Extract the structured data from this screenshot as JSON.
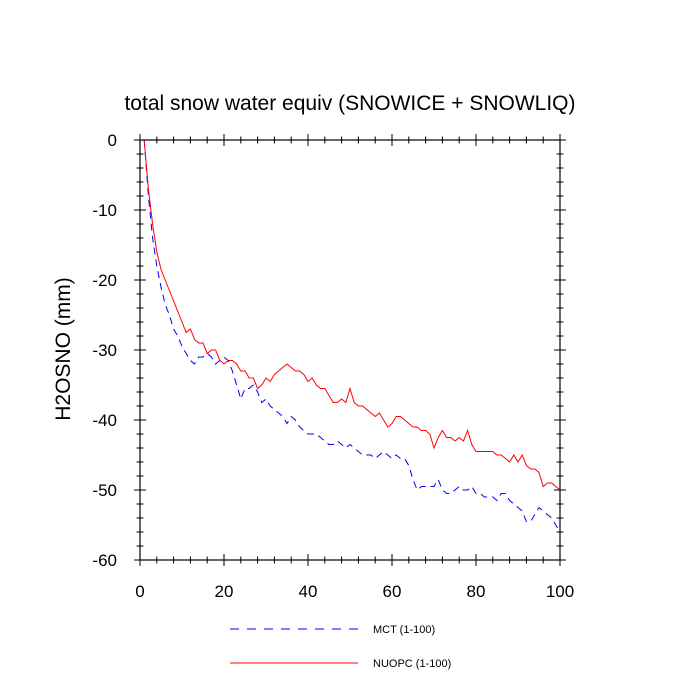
{
  "chart_data": {
    "type": "line",
    "title": "total snow water equiv (SNOWICE + SNOWLIQ)",
    "xlabel": "",
    "ylabel": "H2OSNO  (mm)",
    "xlim": [
      0,
      100
    ],
    "ylim": [
      -60,
      0
    ],
    "xticks": [
      0,
      20,
      40,
      60,
      80,
      100
    ],
    "yticks": [
      0,
      -10,
      -20,
      -30,
      -40,
      -50,
      -60
    ],
    "grid": false,
    "legend_position": "bottom",
    "series": [
      {
        "name": "MCT (1-100)",
        "color": "#0000ff",
        "style": "dashed",
        "x": [
          1,
          2,
          3,
          4,
          5,
          6,
          7,
          8,
          9,
          10,
          11,
          12,
          13,
          14,
          15,
          16,
          17,
          18,
          19,
          20,
          21,
          22,
          23,
          24,
          25,
          26,
          27,
          28,
          29,
          30,
          31,
          32,
          33,
          34,
          35,
          36,
          37,
          38,
          39,
          40,
          41,
          42,
          43,
          44,
          45,
          46,
          47,
          48,
          49,
          50,
          51,
          52,
          53,
          54,
          55,
          56,
          57,
          58,
          59,
          60,
          61,
          62,
          63,
          64,
          65,
          66,
          67,
          68,
          69,
          70,
          71,
          72,
          73,
          74,
          75,
          76,
          77,
          78,
          79,
          80,
          81,
          82,
          83,
          84,
          85,
          86,
          87,
          88,
          89,
          90,
          91,
          92,
          93,
          94,
          95,
          96,
          97,
          98,
          99,
          100
        ],
        "values": [
          0,
          -8,
          -14,
          -18,
          -21,
          -23.5,
          -25,
          -27,
          -28,
          -29.5,
          -30.5,
          -31.5,
          -32,
          -31,
          -31,
          -30.5,
          -31,
          -32,
          -31.5,
          -31,
          -31.5,
          -33,
          -35,
          -37,
          -35.5,
          -35.5,
          -35,
          -36,
          -37.5,
          -37,
          -38,
          -38.5,
          -39,
          -39.5,
          -40.5,
          -39.5,
          -40,
          -41,
          -41.5,
          -42,
          -42,
          -42,
          -42.5,
          -43,
          -43.5,
          -43.5,
          -43,
          -43.5,
          -44,
          -43.5,
          -44,
          -44.5,
          -45,
          -45,
          -45,
          -45.5,
          -45,
          -44.5,
          -45,
          -45.5,
          -45,
          -45.5,
          -45.5,
          -46.5,
          -48.5,
          -50,
          -49.5,
          -49.5,
          -49.5,
          -49.5,
          -48.5,
          -50,
          -50.5,
          -50.5,
          -50,
          -49.5,
          -50,
          -50,
          -49.5,
          -50.5,
          -50.5,
          -51,
          -51,
          -51,
          -51.5,
          -50.5,
          -50.5,
          -51.5,
          -52,
          -52.5,
          -53,
          -54.5,
          -54.5,
          -53.5,
          -52.5,
          -53,
          -53.5,
          -54,
          -55,
          -56
        ]
      },
      {
        "name": "NUOPC (1-100)",
        "color": "#ff0000",
        "style": "solid",
        "x": [
          1,
          2,
          3,
          4,
          5,
          6,
          7,
          8,
          9,
          10,
          11,
          12,
          13,
          14,
          15,
          16,
          17,
          18,
          19,
          20,
          21,
          22,
          23,
          24,
          25,
          26,
          27,
          28,
          29,
          30,
          31,
          32,
          33,
          34,
          35,
          36,
          37,
          38,
          39,
          40,
          41,
          42,
          43,
          44,
          45,
          46,
          47,
          48,
          49,
          50,
          51,
          52,
          53,
          54,
          55,
          56,
          57,
          58,
          59,
          60,
          61,
          62,
          63,
          64,
          65,
          66,
          67,
          68,
          69,
          70,
          71,
          72,
          73,
          74,
          75,
          76,
          77,
          78,
          79,
          80,
          81,
          82,
          83,
          84,
          85,
          86,
          87,
          88,
          89,
          90,
          91,
          92,
          93,
          94,
          95,
          96,
          97,
          98,
          99,
          100
        ],
        "values": [
          0,
          -7,
          -12,
          -16,
          -18.5,
          -20,
          -21.5,
          -23,
          -24.5,
          -26,
          -27.5,
          -27,
          -28.5,
          -29,
          -29,
          -30.5,
          -30,
          -30,
          -31.5,
          -32,
          -31.5,
          -31.5,
          -32,
          -33,
          -33,
          -34,
          -34,
          -35.5,
          -35,
          -34,
          -34.5,
          -33.5,
          -33,
          -32.5,
          -32,
          -32.5,
          -33,
          -33,
          -33.5,
          -34.5,
          -34,
          -35,
          -35.5,
          -35.5,
          -36.5,
          -37.5,
          -37.5,
          -37,
          -37.5,
          -35.5,
          -37.5,
          -38,
          -38,
          -38.5,
          -39,
          -39.5,
          -39,
          -40,
          -41,
          -40.5,
          -39.5,
          -39.5,
          -40,
          -40.5,
          -41,
          -41,
          -41.5,
          -41.5,
          -42,
          -44,
          -42.5,
          -41.5,
          -42.5,
          -42.5,
          -43,
          -42.5,
          -43,
          -41.5,
          -43.5,
          -44.5,
          -44.5,
          -44.5,
          -44.5,
          -44.5,
          -45,
          -45,
          -45.5,
          -46,
          -45,
          -46,
          -45,
          -46.5,
          -47,
          -47,
          -47.5,
          -49.5,
          -49,
          -49,
          -49.5,
          -50
        ]
      }
    ]
  }
}
